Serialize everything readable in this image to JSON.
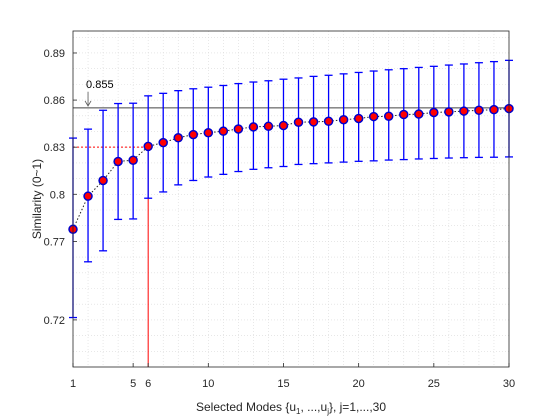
{
  "chart_data": {
    "type": "scatter",
    "xlabel": {
      "main": "Selected Modes {u",
      "sub1": "1",
      "mid": ", ...,u",
      "sub2": "j",
      "tail": "}, j=1,...,30"
    },
    "ylabel": "Similarity (0~1)",
    "xlim": [
      1,
      30
    ],
    "ylim": [
      0.69,
      0.904
    ],
    "xticks": [
      1,
      5,
      6,
      10,
      15,
      20,
      25,
      30
    ],
    "yticks": [
      0.72,
      0.77,
      0.8,
      0.83,
      0.86,
      0.89
    ],
    "ytick_labels": [
      "0.72",
      "0.77",
      "0.8",
      "0.83",
      "0.86",
      "0.89"
    ],
    "grid": true,
    "series": [
      {
        "x": [
          1,
          2,
          3,
          4,
          5,
          6,
          7,
          8,
          9,
          10,
          11,
          12,
          13,
          14,
          15,
          16,
          17,
          18,
          19,
          20,
          21,
          22,
          23,
          24,
          25,
          26,
          27,
          28,
          29,
          30
        ],
        "y": [
          0.7777,
          0.7988,
          0.8088,
          0.8209,
          0.8217,
          0.8305,
          0.8329,
          0.836,
          0.838,
          0.8392,
          0.8402,
          0.8416,
          0.8429,
          0.8433,
          0.8438,
          0.8459,
          0.8461,
          0.8465,
          0.8475,
          0.8483,
          0.8495,
          0.8497,
          0.8508,
          0.8511,
          0.8521,
          0.8525,
          0.853,
          0.8535,
          0.8539,
          0.8546
        ],
        "lower": [
          0.7215,
          0.757,
          0.764,
          0.784,
          0.7843,
          0.7975,
          0.8015,
          0.806,
          0.8088,
          0.811,
          0.8127,
          0.8145,
          0.8159,
          0.8169,
          0.8177,
          0.819,
          0.8195,
          0.82,
          0.8205,
          0.821,
          0.8213,
          0.8218,
          0.8221,
          0.8225,
          0.8228,
          0.8231,
          0.8233,
          0.8235,
          0.8236,
          0.8238
        ],
        "upper": [
          0.8358,
          0.8415,
          0.8535,
          0.8578,
          0.858,
          0.8627,
          0.8643,
          0.866,
          0.8672,
          0.8682,
          0.8693,
          0.8705,
          0.8715,
          0.8723,
          0.8733,
          0.8741,
          0.8751,
          0.8758,
          0.8767,
          0.8776,
          0.8785,
          0.8793,
          0.88,
          0.8808,
          0.8815,
          0.8823,
          0.883,
          0.8838,
          0.8845,
          0.8853
        ]
      }
    ],
    "reference_line": {
      "y": 0.855,
      "label": "0.855",
      "label_x": 2
    },
    "marker_lines": {
      "x": 6,
      "y": 0.83
    },
    "colors": {
      "errorbar": "#0000ff",
      "marker_fill": "#ff0000",
      "marker_edge": "#0000cc",
      "trend": "#222222",
      "reference": "#444444",
      "marker_lines": "#ff0000",
      "grid": "#d9d9d9",
      "axis": "#262626"
    }
  }
}
